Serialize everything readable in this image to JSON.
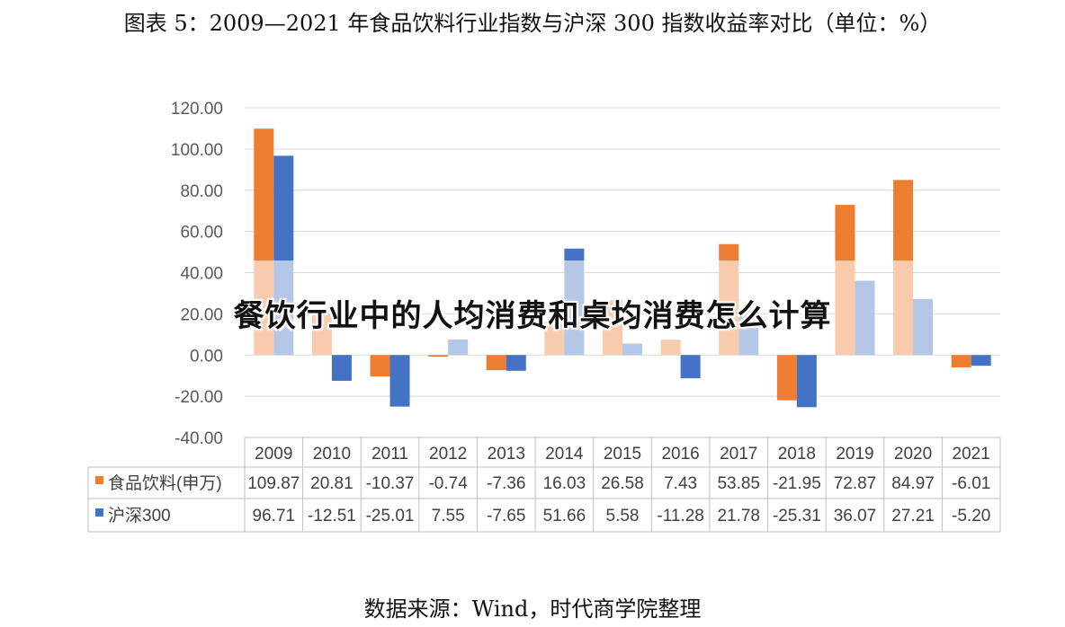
{
  "title": "图表 5：2009—2021 年食品饮料行业指数与沪深 300 指数收益率对比（单位：%）",
  "source": "数据来源：Wind，时代商学院整理",
  "overlay_text": "餐饮行业中的人均消费和桌均消费怎么计算",
  "colors": {
    "series1": "#ED7D31",
    "series2": "#4472C4",
    "series1_light": "#F8CBAD",
    "series2_light": "#B4C7E7",
    "grid": "#D9D9D9"
  },
  "chart_data": {
    "type": "bar",
    "categories": [
      "2009",
      "2010",
      "2011",
      "2012",
      "2013",
      "2014",
      "2015",
      "2016",
      "2017",
      "2018",
      "2019",
      "2020",
      "2021"
    ],
    "series": [
      {
        "name": "食品饮料(申万)",
        "values": [
          109.87,
          20.81,
          -10.37,
          -0.74,
          -7.36,
          16.03,
          26.58,
          7.43,
          53.85,
          -21.95,
          72.87,
          84.97,
          -6.01
        ],
        "labels": [
          "109.87",
          "20.81",
          "-10.37",
          "-0.74",
          "-7.36",
          "16.03",
          "26.58",
          "7.43",
          "53.85",
          "-21.95",
          "72.87",
          "84.97",
          "-6.01"
        ]
      },
      {
        "name": "沪深300",
        "values": [
          96.71,
          -12.51,
          -25.01,
          7.55,
          -7.65,
          51.66,
          5.58,
          -11.28,
          21.78,
          -25.31,
          36.07,
          27.21,
          -5.2
        ],
        "labels": [
          "96.71",
          "-12.51",
          "-25.01",
          "7.55",
          "-7.65",
          "51.66",
          "5.58",
          "-11.28",
          "21.78",
          "-25.31",
          "36.07",
          "27.21",
          "-5.20"
        ]
      }
    ],
    "ylim": [
      -40,
      120
    ],
    "yticks": [
      "120.00",
      "100.00",
      "80.00",
      "60.00",
      "40.00",
      "20.00",
      "0.00",
      "-20.00",
      "-40.00"
    ],
    "ytick_values": [
      120,
      100,
      80,
      60,
      40,
      20,
      0,
      -20,
      -40
    ],
    "grid": true,
    "legend": "data-table"
  }
}
